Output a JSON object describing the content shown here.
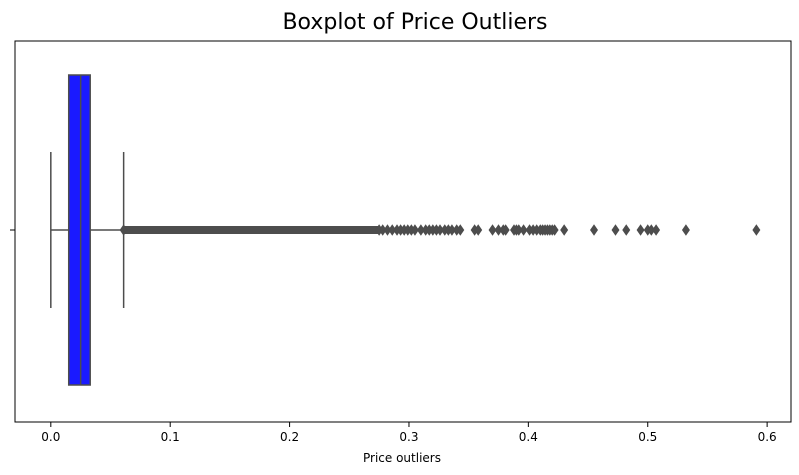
{
  "chart_data": {
    "type": "boxplot",
    "orientation": "horizontal",
    "title": "Boxplot of Price Outliers",
    "xlabel": "Price outliers",
    "ylabel": "",
    "xlim": [
      -0.03,
      0.62
    ],
    "x_ticks": [
      0.0,
      0.1,
      0.2,
      0.3,
      0.4,
      0.5,
      0.6
    ],
    "x_tick_labels": [
      "0.0",
      "0.1",
      "0.2",
      "0.3",
      "0.4",
      "0.5",
      "0.6"
    ],
    "grid": false,
    "legend": "none",
    "box": {
      "whisker_low": 0.0,
      "q1": 0.015,
      "median": 0.025,
      "q3": 0.033,
      "whisker_high": 0.061
    },
    "outliers_dense_range": [
      0.061,
      0.275
    ],
    "outliers": [
      0.278,
      0.282,
      0.286,
      0.29,
      0.293,
      0.296,
      0.299,
      0.302,
      0.305,
      0.31,
      0.314,
      0.317,
      0.32,
      0.323,
      0.326,
      0.33,
      0.333,
      0.336,
      0.34,
      0.343,
      0.355,
      0.358,
      0.37,
      0.375,
      0.379,
      0.381,
      0.388,
      0.39,
      0.392,
      0.396,
      0.401,
      0.404,
      0.407,
      0.41,
      0.412,
      0.414,
      0.416,
      0.418,
      0.42,
      0.422,
      0.43,
      0.455,
      0.473,
      0.482,
      0.494,
      0.5,
      0.503,
      0.507,
      0.532,
      0.591
    ],
    "colors": {
      "box_fill": "#1a1aff",
      "line": "#4d4d4d",
      "outlier": "#4d4d4d"
    }
  }
}
